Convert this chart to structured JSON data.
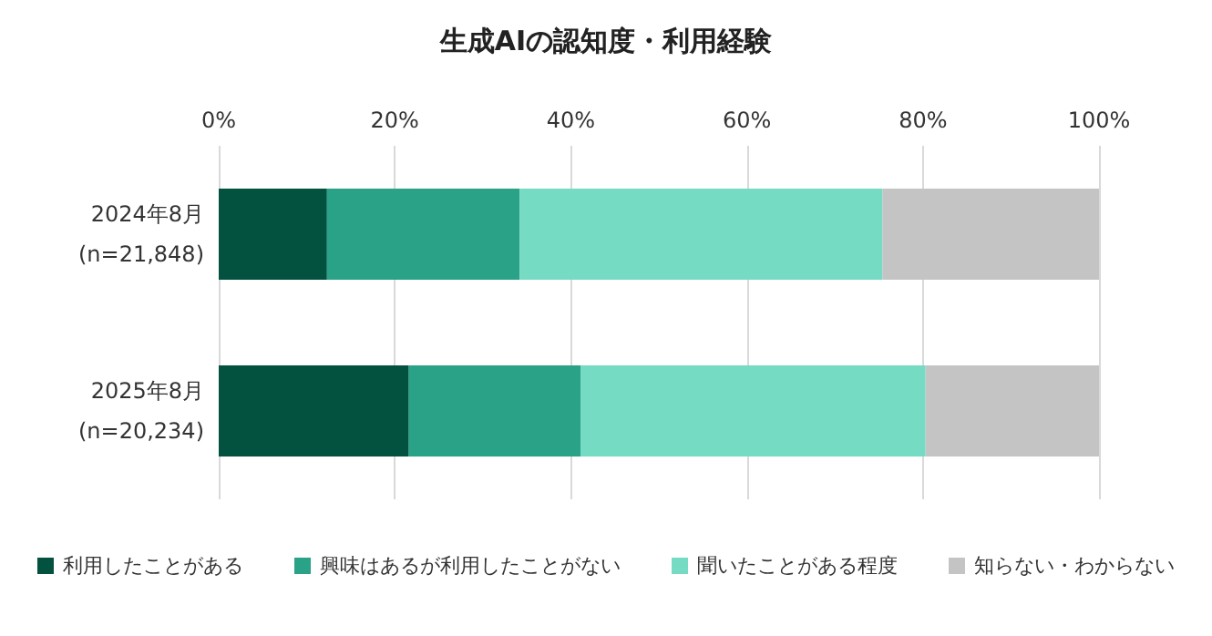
{
  "chart_data": {
    "type": "bar",
    "orientation": "horizontal",
    "stacked": true,
    "title": "生成AIの認知度・利用経験",
    "categories": [
      "2024年8月\n(n=21,848)",
      "2025年8月\n(n=20,234)"
    ],
    "series": [
      {
        "name": "利用したことがある",
        "color": "#03523f",
        "values": [
          12.3,
          21.6
        ]
      },
      {
        "name": "興味はあるが利用したことがない",
        "color": "#2aa287",
        "values": [
          21.9,
          19.5
        ]
      },
      {
        "name": "聞いたことがある程度",
        "color": "#76dbc3",
        "values": [
          41.2,
          39.2
        ]
      },
      {
        "name": "知らない・わからない",
        "color": "#c4c4c4",
        "values": [
          24.6,
          19.7
        ]
      }
    ],
    "xlim": [
      0,
      100
    ],
    "xticks": [
      {
        "value": 0,
        "label": "0%"
      },
      {
        "value": 20,
        "label": "20%"
      },
      {
        "value": 40,
        "label": "40%"
      },
      {
        "value": 60,
        "label": "60%"
      },
      {
        "value": 80,
        "label": "80%"
      },
      {
        "value": 100,
        "label": "100%"
      }
    ],
    "grid": "x",
    "legend": "bottom"
  }
}
